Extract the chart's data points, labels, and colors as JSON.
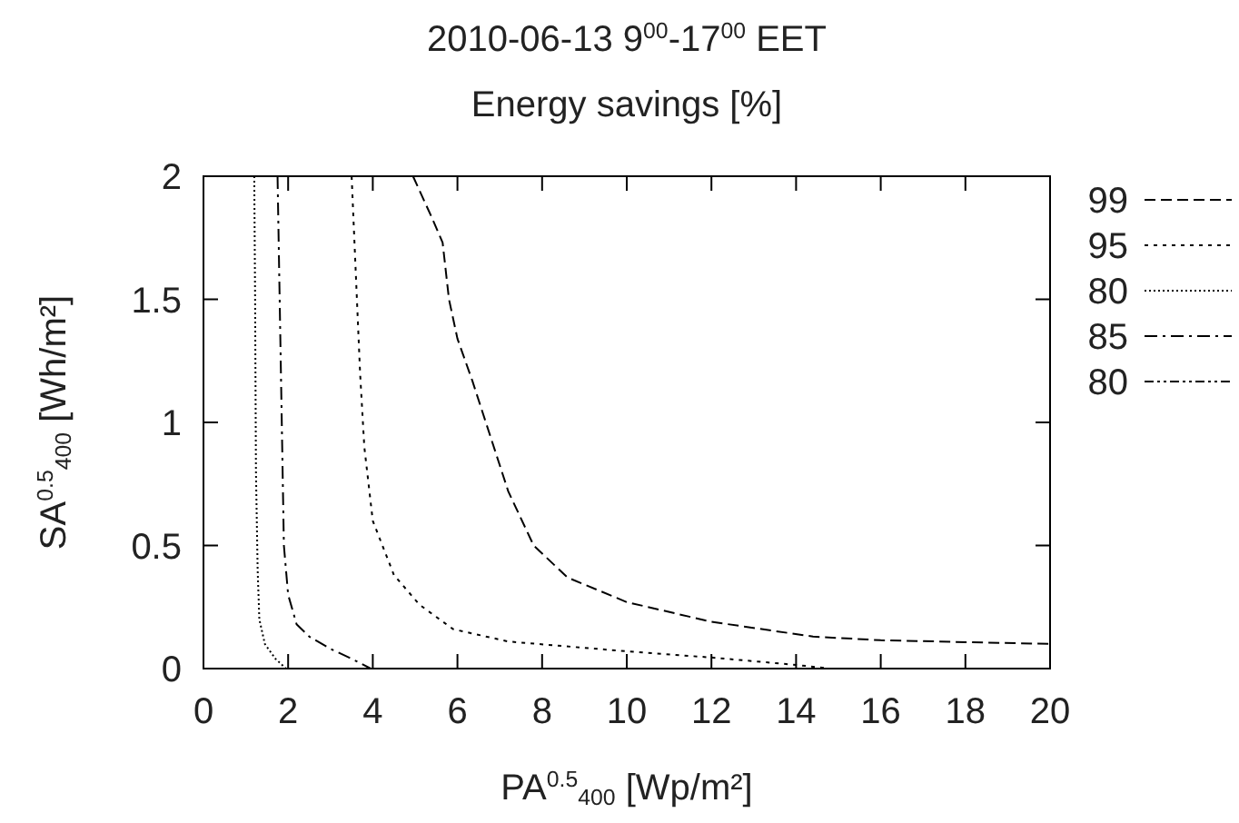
{
  "chart_data": {
    "type": "line",
    "title": "2010-06-13  9$^{00}$-17$^{00}$ EET",
    "subtitle": "Energy savings [%]",
    "xlabel": "PA$^{0.5}$$_{400}$ [Wp/m²]",
    "ylabel": "SA$^{0.5}$$_{400}$ [Wh/m²]",
    "xlim": [
      0,
      20
    ],
    "ylim": [
      0,
      2
    ],
    "xticks": [
      0,
      2,
      4,
      6,
      8,
      10,
      12,
      14,
      16,
      18,
      20
    ],
    "yticks": [
      0,
      0.5,
      1,
      {
        "value": 1.5,
        "label": "1.5"
      },
      2
    ],
    "grid": false,
    "legend": "right",
    "series": [
      {
        "name": "99",
        "color": "#000000",
        "line_style": "dashed",
        "x": [
          4.95,
          5.4,
          5.65,
          5.8,
          6.0,
          6.35,
          7.2,
          7.8,
          8.6,
          10,
          12,
          14.4,
          16,
          20
        ],
        "values": [
          2,
          1.83,
          1.73,
          1.5,
          1.34,
          1.17,
          0.72,
          0.5,
          0.37,
          0.27,
          0.19,
          0.13,
          0.115,
          0.1
        ]
      },
      {
        "name": "95",
        "color": "#000000",
        "line_style": "dotted",
        "x": [
          3.5,
          3.6,
          3.7,
          3.8,
          4.0,
          4.5,
          5.1,
          5.9,
          7.2,
          10,
          12,
          14,
          14.8
        ],
        "values": [
          2,
          1.6,
          1.2,
          0.9,
          0.6,
          0.38,
          0.26,
          0.16,
          0.11,
          0.07,
          0.045,
          0.015,
          0
        ]
      },
      {
        "name": "80",
        "color": "#000000",
        "line_style": "densedotted",
        "x": [
          1.2,
          1.22,
          1.24,
          1.28,
          1.32,
          1.45,
          1.7,
          1.95
        ],
        "values": [
          2,
          1.5,
          0.8,
          0.4,
          0.2,
          0.1,
          0.04,
          0
        ]
      },
      {
        "name": "85",
        "color": "#000000",
        "line_style": "dashdot",
        "x": [
          1.75,
          1.8,
          1.85,
          1.9,
          2.0,
          2.2,
          2.5,
          3.0,
          3.5,
          3.95
        ],
        "values": [
          2,
          1.5,
          1,
          0.5,
          0.3,
          0.18,
          0.13,
          0.08,
          0.04,
          0
        ]
      },
      {
        "name": "80",
        "color": "#000000",
        "line_style": "dashdotdot"
      }
    ]
  }
}
